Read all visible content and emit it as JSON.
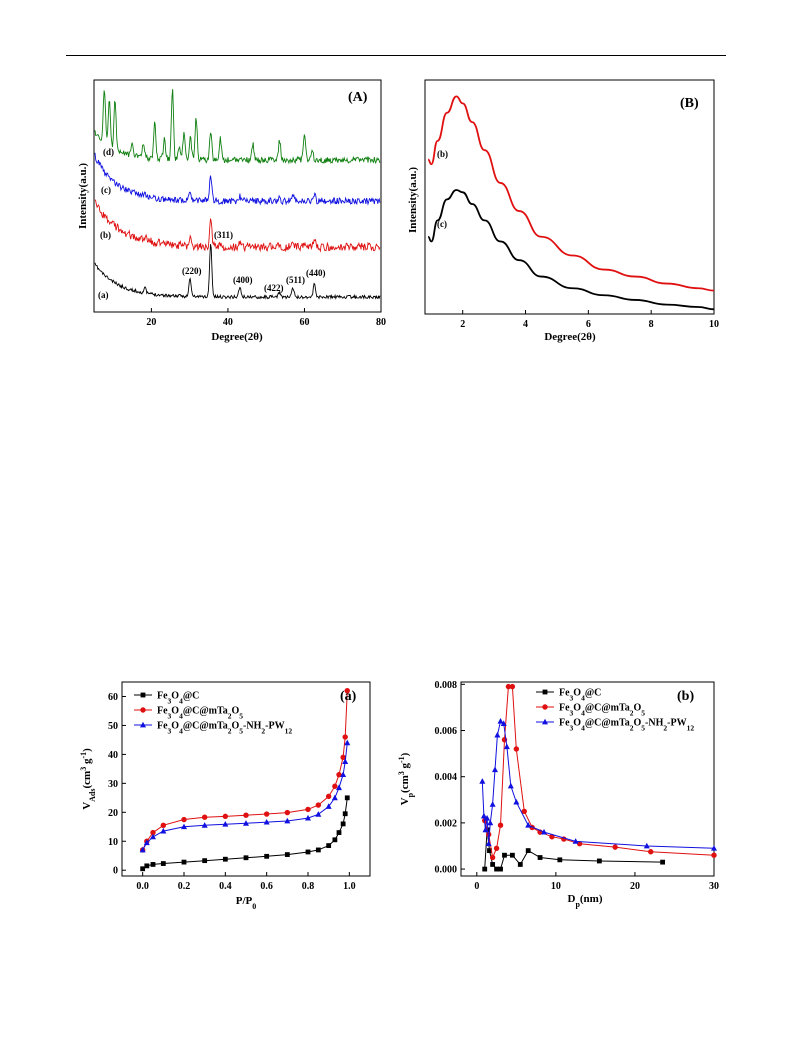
{
  "xrd_wide": {
    "panel_label": "(A)",
    "xlabel": "Degree(2θ)",
    "ylabel": "Intensity(a.u.)",
    "xticks": [
      "20",
      "40",
      "60",
      "80"
    ],
    "xlim": [
      5,
      80
    ],
    "curve_labels": [
      "(a)",
      "(b)",
      "(c)",
      "(d)"
    ],
    "peak_labels": [
      "(220)",
      "(311)",
      "(400)",
      "(422)",
      "(511)",
      "(440)"
    ],
    "colors": [
      "#000000",
      "#e01010",
      "#1010e0",
      "#108010"
    ]
  },
  "xrd_low": {
    "panel_label": "(B)",
    "xlabel": "Degree(2θ)",
    "ylabel": "Intensity(a.u.)",
    "xticks": [
      "2",
      "4",
      "6",
      "8",
      "10"
    ],
    "xlim": [
      0.8,
      10
    ],
    "curve_labels": [
      "(b)",
      "(c)"
    ],
    "colors": [
      "#e01010",
      "#000000"
    ]
  },
  "chart_data": [
    {
      "type": "line",
      "title": "(A)",
      "xlabel": "Degree(2θ)",
      "ylabel": "Intensity(a.u.)",
      "xlim": [
        5,
        80
      ],
      "peaks_2theta": [
        30.1,
        35.5,
        43.1,
        53.5,
        57.0,
        62.6
      ],
      "peak_labels": [
        "(220)",
        "(311)",
        "(400)",
        "(422)",
        "(511)",
        "(440)"
      ],
      "series": [
        {
          "name": "(a)",
          "color": "#000000"
        },
        {
          "name": "(b)",
          "color": "#e01010"
        },
        {
          "name": "(c)",
          "color": "#1010e0"
        },
        {
          "name": "(d)",
          "color": "#108010"
        }
      ]
    },
    {
      "type": "line",
      "title": "(B)",
      "xlabel": "Degree(2θ)",
      "ylabel": "Intensity(a.u.)",
      "xlim": [
        0.8,
        10
      ],
      "series": [
        {
          "name": "(b)",
          "color": "#e01010",
          "x": [
            0.9,
            1.0,
            1.2,
            1.5,
            1.8,
            2.0,
            2.3,
            2.7,
            3.2,
            3.8,
            4.5,
            5.5,
            6.5,
            7.5,
            8.5,
            9.5,
            10
          ],
          "y": [
            0.66,
            0.64,
            0.74,
            0.86,
            0.93,
            0.9,
            0.82,
            0.7,
            0.56,
            0.44,
            0.33,
            0.25,
            0.19,
            0.16,
            0.13,
            0.11,
            0.1
          ]
        },
        {
          "name": "(c)",
          "color": "#000000",
          "x": [
            0.9,
            1.0,
            1.2,
            1.5,
            1.8,
            2.0,
            2.3,
            2.7,
            3.2,
            3.8,
            4.5,
            5.5,
            6.5,
            7.5,
            8.5,
            9.5,
            10
          ],
          "y": [
            0.33,
            0.31,
            0.4,
            0.49,
            0.53,
            0.52,
            0.47,
            0.4,
            0.31,
            0.23,
            0.16,
            0.11,
            0.08,
            0.06,
            0.04,
            0.03,
            0.02
          ]
        }
      ]
    },
    {
      "type": "line",
      "title": "(a)",
      "xlabel": "P/P0",
      "ylabel": "VAds(cm3 g-1)",
      "xlim": [
        -0.1,
        1.1
      ],
      "ylim": [
        -2,
        65
      ],
      "xticks": [
        "0.0",
        "0.2",
        "0.4",
        "0.6",
        "0.8",
        "1.0"
      ],
      "yticks": [
        "0",
        "10",
        "20",
        "30",
        "40",
        "50",
        "60"
      ],
      "series": [
        {
          "name": "Fe3O4@C",
          "color": "#000000",
          "marker": "square",
          "x": [
            0.0,
            0.02,
            0.05,
            0.1,
            0.2,
            0.3,
            0.4,
            0.5,
            0.6,
            0.7,
            0.8,
            0.85,
            0.9,
            0.93,
            0.95,
            0.97,
            0.98,
            0.99
          ],
          "y": [
            0.5,
            1.5,
            2.0,
            2.3,
            2.8,
            3.3,
            3.8,
            4.3,
            4.8,
            5.4,
            6.3,
            7.0,
            8.5,
            10.5,
            13.0,
            16.0,
            19.5,
            25.0
          ]
        },
        {
          "name": "Fe3O4@C@mTa2O5",
          "color": "#e01010",
          "marker": "circle",
          "x": [
            0.0,
            0.02,
            0.05,
            0.1,
            0.2,
            0.3,
            0.4,
            0.5,
            0.6,
            0.7,
            0.8,
            0.85,
            0.9,
            0.93,
            0.95,
            0.97,
            0.98,
            0.99
          ],
          "y": [
            7.0,
            10.0,
            13.0,
            15.5,
            17.5,
            18.3,
            18.6,
            19.0,
            19.4,
            19.9,
            21.0,
            22.5,
            25.5,
            29.0,
            33.0,
            39.0,
            46.0,
            62.0
          ]
        },
        {
          "name": "Fe3O4@C@mTa2O5-NH2-PW12",
          "color": "#1010e0",
          "marker": "triangle",
          "x": [
            0.0,
            0.02,
            0.05,
            0.1,
            0.2,
            0.3,
            0.4,
            0.5,
            0.6,
            0.7,
            0.8,
            0.85,
            0.9,
            0.93,
            0.95,
            0.97,
            0.98,
            0.99
          ],
          "y": [
            7.0,
            9.5,
            11.5,
            13.5,
            15.0,
            15.5,
            15.9,
            16.2,
            16.6,
            17.0,
            18.0,
            19.3,
            22.0,
            25.0,
            28.5,
            33.0,
            37.5,
            44.0
          ]
        }
      ]
    },
    {
      "type": "line",
      "title": "(b)",
      "xlabel": "Dp(nm)",
      "ylabel": "Vp(cm3 g-1)",
      "xlim": [
        -2,
        30
      ],
      "ylim": [
        -0.0003,
        0.0081
      ],
      "xticks": [
        "0",
        "10",
        "20",
        "30"
      ],
      "yticks": [
        "0.000",
        "0.002",
        "0.004",
        "0.006",
        "0.008"
      ],
      "series": [
        {
          "name": "Fe3O4@C",
          "color": "#000000",
          "marker": "square",
          "x": [
            1.0,
            1.3,
            1.6,
            2.0,
            2.5,
            3.0,
            3.5,
            4.5,
            5.5,
            6.5,
            8.0,
            10.5,
            15.5,
            23.5
          ],
          "y": [
            0.0,
            0.0017,
            0.0008,
            0.0002,
            0.0,
            0.0,
            0.0006,
            0.0006,
            0.0002,
            0.0008,
            0.0005,
            0.0004,
            0.00035,
            0.0003
          ]
        },
        {
          "name": "Fe3O4@C@mTa2O5",
          "color": "#e01010",
          "marker": "circle",
          "x": [
            1.0,
            1.5,
            2.0,
            2.5,
            3.0,
            3.5,
            4.0,
            4.5,
            5.0,
            6.0,
            7.0,
            8.0,
            9.5,
            11.0,
            13.0,
            17.5,
            22.0,
            30.0
          ],
          "y": [
            0.0021,
            0.0015,
            0.0005,
            0.0009,
            0.0019,
            0.0056,
            0.0079,
            0.0079,
            0.0052,
            0.0025,
            0.0018,
            0.0016,
            0.0014,
            0.0013,
            0.0011,
            0.00095,
            0.00075,
            0.0006
          ]
        },
        {
          "name": "Fe3O4@C@mTa2O5-NH2-PW12",
          "color": "#1010e0",
          "marker": "triangle",
          "x": [
            0.7,
            0.9,
            1.1,
            1.3,
            1.5,
            1.7,
            2.0,
            2.3,
            2.6,
            3.0,
            3.4,
            3.8,
            4.3,
            5.0,
            6.5,
            8.5,
            12.5,
            21.5,
            30.0
          ],
          "y": [
            0.0038,
            0.0023,
            0.0017,
            0.0022,
            0.0011,
            0.002,
            0.0028,
            0.0043,
            0.0058,
            0.0064,
            0.0063,
            0.0053,
            0.0036,
            0.0029,
            0.0019,
            0.0016,
            0.0012,
            0.001,
            0.0009
          ]
        }
      ]
    }
  ],
  "legend_a": [
    "Fe3O4@C",
    "Fe3O4@C@mTa2O5",
    "Fe3O4@C@mTa2O5-NH2-PW12"
  ],
  "legend_b": [
    "Fe3O4@C",
    "Fe3O4@C@mTa2O5",
    "Fe3O4@C@mTa2O5-NH2-PW12"
  ]
}
